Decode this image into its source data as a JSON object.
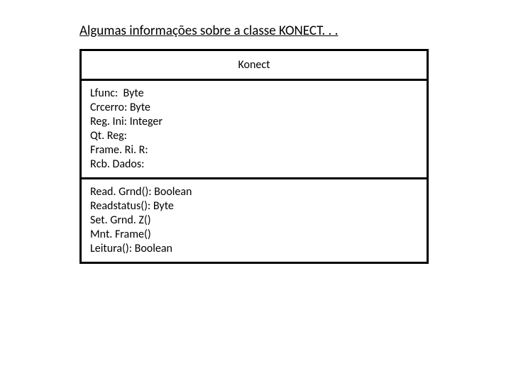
{
  "heading": "Algumas informações sobre a classe KONECT. . .",
  "class_diagram": {
    "type": "uml-class",
    "title": "Konect",
    "attributes": [
      "Lfunc:  Byte",
      "Crcerro: Byte",
      "Reg. Ini: Integer",
      "Qt. Reg:",
      "Frame. Ri. R:",
      "Rcb. Dados:"
    ],
    "methods": [
      "Read. Grnd(): Boolean",
      "Readstatus(): Byte",
      "Set. Grnd. Z()",
      "Mnt. Frame()",
      "Leitura(): Boolean"
    ],
    "border_color": "#000000",
    "background_color": "#ffffff",
    "font_size": 16,
    "border_width": 3
  }
}
